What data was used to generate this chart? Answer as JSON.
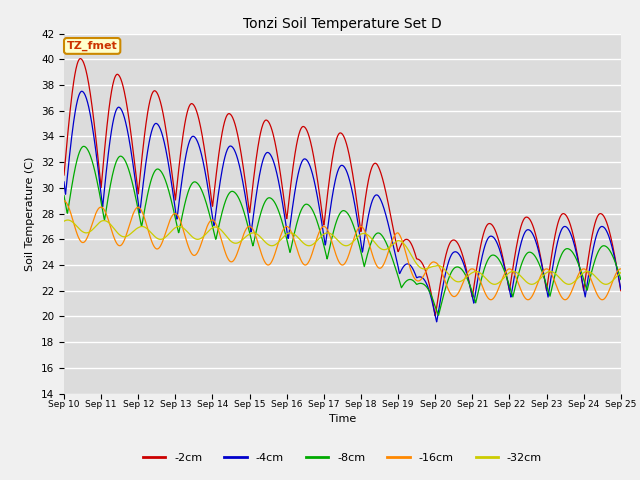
{
  "title": "Tonzi Soil Temperature Set D",
  "xlabel": "Time",
  "ylabel": "Soil Temperature (C)",
  "ylim": [
    14,
    42
  ],
  "xlim": [
    0,
    15
  ],
  "legend_label": "TZ_fmet",
  "series_labels": [
    "-2cm",
    "-4cm",
    "-8cm",
    "-16cm",
    "-32cm"
  ],
  "series_colors": [
    "#cc0000",
    "#0000cc",
    "#00aa00",
    "#ff8800",
    "#cccc00"
  ],
  "xtick_labels": [
    "Sep 10",
    "Sep 11",
    "Sep 12",
    "Sep 13",
    "Sep 14",
    "Sep 15",
    "Sep 16",
    "Sep 17",
    "Sep 18",
    "Sep 19",
    "Sep 20",
    "Sep 21",
    "Sep 22",
    "Sep 23",
    "Sep 24",
    "Sep 25"
  ],
  "background_color": "#dcdcdc",
  "grid_color": "#ffffff"
}
